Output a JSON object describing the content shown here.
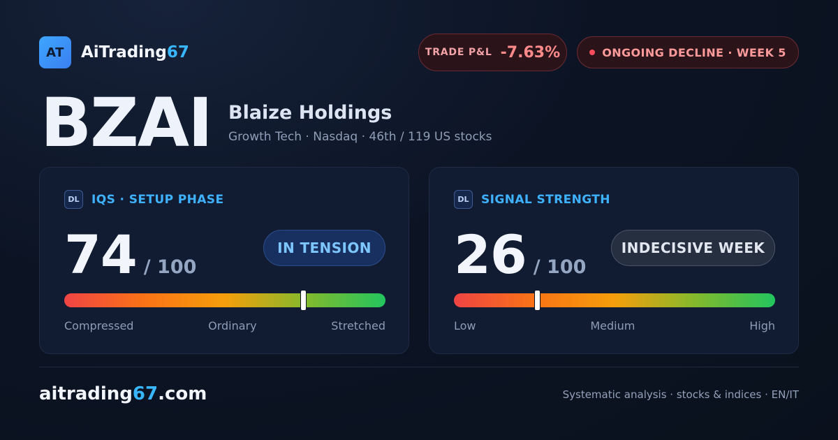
{
  "brand": {
    "logo_mark": "AT",
    "name_main": "AiTrading",
    "name_accent": "67"
  },
  "header": {
    "pnl_label": "TRADE P&L",
    "pnl_value": "-7.63%",
    "status": "ONGOING DECLINE · WEEK 5",
    "status_dot_color": "#ff4d5b"
  },
  "ticker": {
    "symbol": "BZAI",
    "company": "Blaize Holdings",
    "details": "Growth Tech · Nasdaq · 46th / 119 US stocks"
  },
  "cards": [
    {
      "badge": "DL",
      "title": "IQS · SETUP PHASE",
      "score": "74",
      "max": "/ 100",
      "status": "IN TENSION",
      "marker_level": 0.745,
      "scale": [
        "Compressed",
        "Ordinary",
        "Stretched"
      ]
    },
    {
      "badge": "DL",
      "title": "SIGNAL STRENGTH",
      "score": "26",
      "max": "/ 100",
      "status": "INDECISIVE WEEK",
      "marker_level": 0.26,
      "scale": [
        "Low",
        "Medium",
        "High"
      ]
    }
  ],
  "footer": {
    "site_main": "aitrading",
    "site_accent": "67",
    "site_tld": ".com",
    "tagline": "Systematic analysis · stocks & indices · EN/IT"
  },
  "colors": {
    "accent": "#38b6ff",
    "negative": "#ff8a8a",
    "background": "#0c1424"
  },
  "icons": {
    "status_dot": "red-dot-icon"
  }
}
